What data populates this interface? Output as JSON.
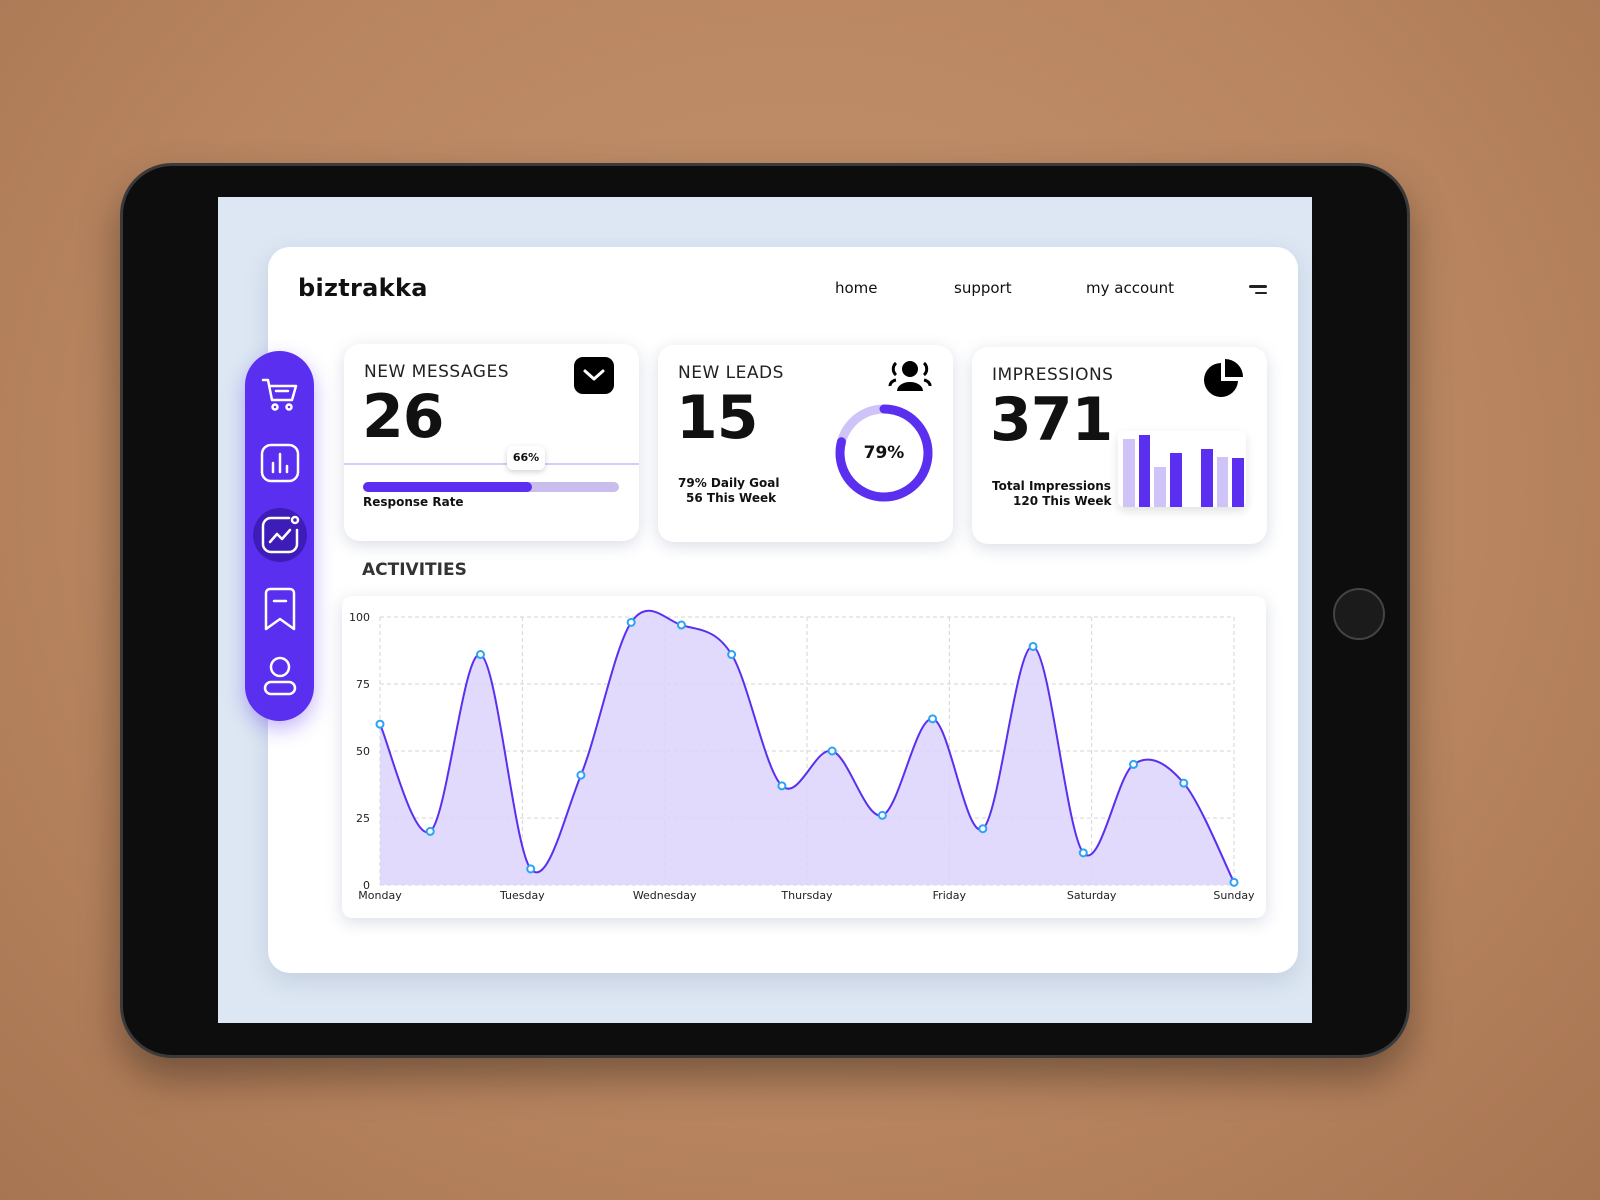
{
  "app": {
    "logo": "biztrakka",
    "nav": [
      {
        "label": "home"
      },
      {
        "label": "support"
      },
      {
        "label": "my account"
      }
    ]
  },
  "colors": {
    "accent": "#5a2ff0",
    "accent_light": "#cfc3f7",
    "fill": "#ddd3fb",
    "point": "#2aa3f5"
  },
  "sidebar": {
    "items": [
      {
        "icon": "cart-icon"
      },
      {
        "icon": "bar-chart-icon"
      },
      {
        "icon": "trend-chart-icon",
        "active": true
      },
      {
        "icon": "bookmark-icon"
      },
      {
        "icon": "user-icon"
      }
    ]
  },
  "cards": {
    "messages": {
      "title": "NEW MESSAGES",
      "value": "26",
      "icon": "mail-icon",
      "progress_label": "Response Rate",
      "progress_value": "66%",
      "progress": 66
    },
    "leads": {
      "title": "NEW LEADS",
      "value": "15",
      "icon": "users-icon",
      "line1": "79% Daily Goal",
      "line2": "56 This Week",
      "donut_value": "79%",
      "donut": 79
    },
    "impressions": {
      "title": "IMPRESSIONS",
      "value": "371",
      "icon": "pie-chart-icon",
      "line1": "Total Impressions",
      "line2": "120 This Week",
      "mini_bars": [
        95,
        100,
        55,
        75,
        0,
        80,
        70,
        68
      ]
    }
  },
  "activities": {
    "title": "ACTIVITIES"
  },
  "chart_data": {
    "type": "area",
    "x_labels": [
      "Monday",
      "Tuesday",
      "Wednesday",
      "Thursday",
      "Friday",
      "Saturday",
      "Sunday"
    ],
    "y_ticks": [
      "0",
      "25",
      "50",
      "75",
      "100"
    ],
    "ylim": [
      0,
      100
    ],
    "grid": true,
    "values": [
      60,
      20,
      86,
      6,
      41,
      98,
      97,
      86,
      37,
      50,
      26,
      62,
      21,
      89,
      12,
      45,
      38,
      1
    ]
  }
}
